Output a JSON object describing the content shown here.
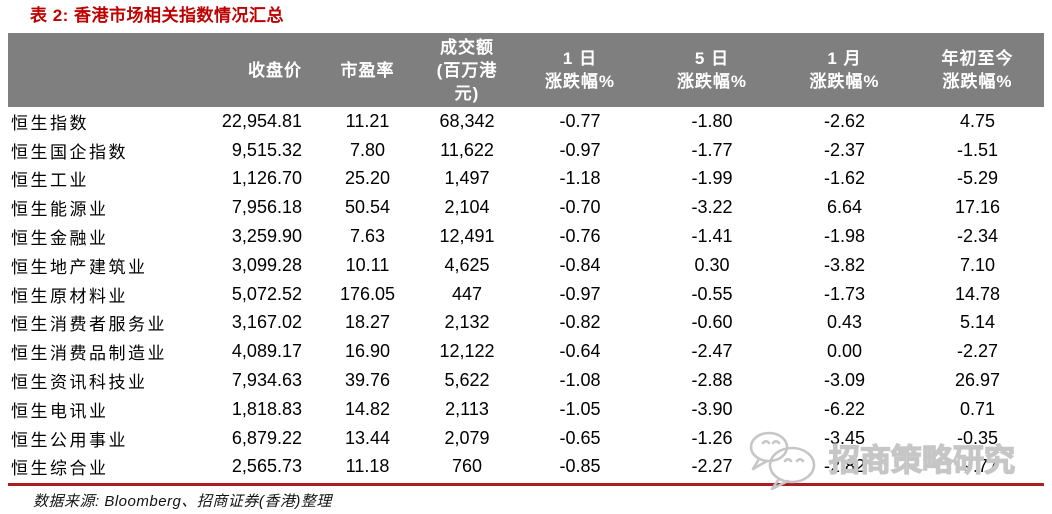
{
  "title": "表 2: 香港市场相关指数情况汇总",
  "table": {
    "columns": [
      {
        "id": "name",
        "lines": [
          ""
        ]
      },
      {
        "id": "close",
        "lines": [
          "收盘价"
        ]
      },
      {
        "id": "pe",
        "lines": [
          "市盈率"
        ]
      },
      {
        "id": "turnover",
        "lines": [
          "成交额",
          "(百万港",
          "元)"
        ]
      },
      {
        "id": "d1",
        "lines": [
          "1 日",
          "涨跌幅%"
        ]
      },
      {
        "id": "d5",
        "lines": [
          "5 日",
          "涨跌幅%"
        ]
      },
      {
        "id": "m1",
        "lines": [
          "1 月",
          "涨跌幅%"
        ]
      },
      {
        "id": "ytd",
        "lines": [
          "年初至今",
          "涨跌幅%"
        ]
      }
    ],
    "row_keys": [
      "name",
      "close",
      "pe",
      "turnover",
      "d1",
      "d5",
      "m1",
      "ytd"
    ],
    "rows": [
      {
        "name": "恒生指数",
        "close": "22,954.81",
        "pe": "11.21",
        "turnover": "68,342",
        "d1": "-0.77",
        "d5": "-1.80",
        "m1": "-2.62",
        "ytd": "4.75"
      },
      {
        "name": "恒生国企指数",
        "close": "9,515.32",
        "pe": "7.80",
        "turnover": "11,622",
        "d1": "-0.97",
        "d5": "-1.77",
        "m1": "-2.37",
        "ytd": "-1.51"
      },
      {
        "name": "恒生工业",
        "close": "1,126.70",
        "pe": "25.20",
        "turnover": "1,497",
        "d1": "-1.18",
        "d5": "-1.99",
        "m1": "-1.62",
        "ytd": "-5.29"
      },
      {
        "name": "恒生能源业",
        "close": "7,956.18",
        "pe": "50.54",
        "turnover": "2,104",
        "d1": "-0.70",
        "d5": "-3.22",
        "m1": "6.64",
        "ytd": "17.16"
      },
      {
        "name": "恒生金融业",
        "close": "3,259.90",
        "pe": "7.63",
        "turnover": "12,491",
        "d1": "-0.76",
        "d5": "-1.41",
        "m1": "-1.98",
        "ytd": "-2.34"
      },
      {
        "name": "恒生地产建筑业",
        "close": "3,099.28",
        "pe": "10.11",
        "turnover": "4,625",
        "d1": "-0.84",
        "d5": "0.30",
        "m1": "-3.82",
        "ytd": "7.10"
      },
      {
        "name": "恒生原材料业",
        "close": "5,072.52",
        "pe": "176.05",
        "turnover": "447",
        "d1": "-0.97",
        "d5": "-0.55",
        "m1": "-1.73",
        "ytd": "14.78"
      },
      {
        "name": "恒生消费者服务业",
        "close": "3,167.02",
        "pe": "18.27",
        "turnover": "2,132",
        "d1": "-0.82",
        "d5": "-0.60",
        "m1": "0.43",
        "ytd": "5.14"
      },
      {
        "name": "恒生消费品制造业",
        "close": "4,089.17",
        "pe": "16.90",
        "turnover": "12,122",
        "d1": "-0.64",
        "d5": "-2.47",
        "m1": "0.00",
        "ytd": "-2.27"
      },
      {
        "name": "恒生资讯科技业",
        "close": "7,934.63",
        "pe": "39.76",
        "turnover": "5,622",
        "d1": "-1.08",
        "d5": "-2.88",
        "m1": "-3.09",
        "ytd": "26.97"
      },
      {
        "name": "恒生电讯业",
        "close": "1,818.83",
        "pe": "14.82",
        "turnover": "2,113",
        "d1": "-1.05",
        "d5": "-3.90",
        "m1": "-6.22",
        "ytd": "0.71"
      },
      {
        "name": "恒生公用事业",
        "close": "6,879.22",
        "pe": "13.44",
        "turnover": "2,079",
        "d1": "-0.65",
        "d5": "-1.26",
        "m1": "-3.45",
        "ytd": "-0.35"
      },
      {
        "name": "恒生综合业",
        "close": "2,565.73",
        "pe": "11.18",
        "turnover": "760",
        "d1": "-0.85",
        "d5": "-2.27",
        "m1": "-2.82",
        "ytd": "-9.77"
      }
    ]
  },
  "footer": {
    "source": "数据来源: Bloomberg、招商证券(香港)整理"
  },
  "watermark": {
    "text": "招商策略研究",
    "logo": "wechat-bubbles-icon"
  },
  "colors": {
    "title": "#bf0000",
    "header_bg": "#7f7f7f",
    "header_text": "#ffffff",
    "divider": "#a81e22",
    "watermark": "#c6c6c6"
  }
}
